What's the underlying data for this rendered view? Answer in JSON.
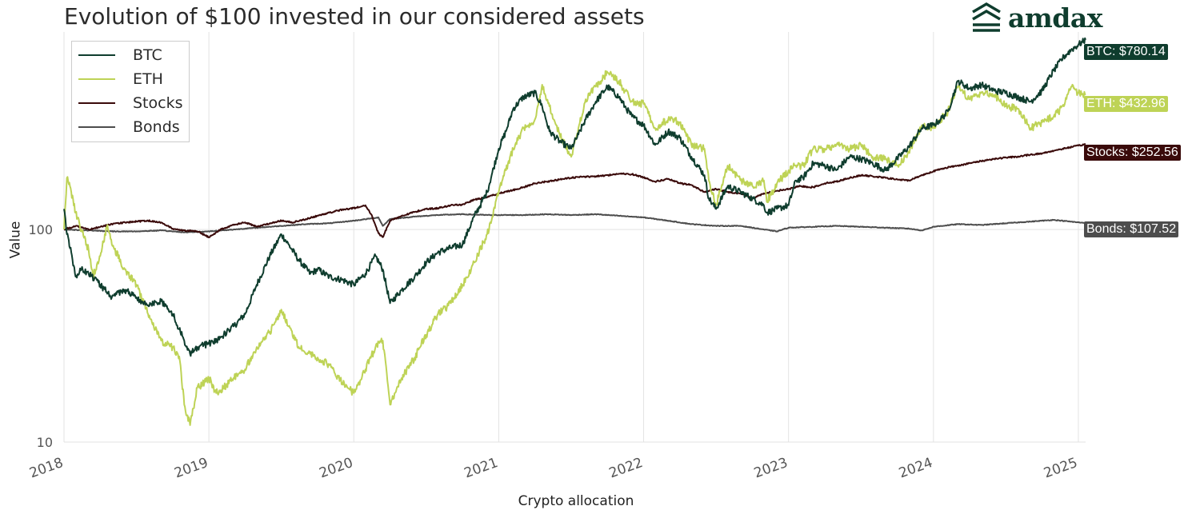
{
  "brand": {
    "name": "amdax",
    "logo_icon": "stacked-chevrons-icon",
    "color": "#0f3d2e"
  },
  "chart_data": {
    "type": "line",
    "title": "Evolution of $100 invested in our considered assets",
    "xlabel": "Crypto allocation",
    "ylabel": "Value",
    "yscale": "log",
    "ylim": [
      10,
      850
    ],
    "xlim": [
      2018.0,
      2025.05
    ],
    "x_ticks": [
      "2018",
      "2019",
      "2020",
      "2021",
      "2022",
      "2023",
      "2024",
      "2025"
    ],
    "y_ticks": [
      "10",
      "100"
    ],
    "grid": true,
    "legend": {
      "position": "top-left",
      "entries": [
        "BTC",
        "ETH",
        "Stocks",
        "Bonds"
      ]
    },
    "series": [
      {
        "name": "BTC",
        "color": "#0f3d2e",
        "end_label": "BTC: $780.14",
        "x": [
          2018.0,
          2018.02,
          2018.05,
          2018.08,
          2018.12,
          2018.17,
          2018.25,
          2018.33,
          2018.42,
          2018.5,
          2018.58,
          2018.67,
          2018.75,
          2018.83,
          2018.87,
          2018.92,
          2019.0,
          2019.08,
          2019.17,
          2019.25,
          2019.33,
          2019.42,
          2019.5,
          2019.55,
          2019.62,
          2019.7,
          2019.75,
          2019.83,
          2019.92,
          2020.0,
          2020.08,
          2020.15,
          2020.2,
          2020.25,
          2020.33,
          2020.42,
          2020.5,
          2020.58,
          2020.67,
          2020.75,
          2020.83,
          2020.92,
          2021.0,
          2021.05,
          2021.1,
          2021.17,
          2021.25,
          2021.3,
          2021.35,
          2021.42,
          2021.5,
          2021.55,
          2021.6,
          2021.67,
          2021.75,
          2021.83,
          2021.87,
          2021.92,
          2022.0,
          2022.08,
          2022.17,
          2022.25,
          2022.33,
          2022.42,
          2022.45,
          2022.5,
          2022.58,
          2022.67,
          2022.75,
          2022.83,
          2022.85,
          2022.92,
          2023.0,
          2023.05,
          2023.1,
          2023.17,
          2023.25,
          2023.33,
          2023.42,
          2023.5,
          2023.58,
          2023.67,
          2023.75,
          2023.83,
          2023.92,
          2024.0,
          2024.05,
          2024.1,
          2024.17,
          2024.25,
          2024.33,
          2024.42,
          2024.5,
          2024.58,
          2024.67,
          2024.75,
          2024.83,
          2024.9,
          2024.95,
          2025.0,
          2025.05
        ],
        "values": [
          125,
          95,
          78,
          60,
          65,
          62,
          55,
          48,
          52,
          48,
          44,
          46,
          40,
          30,
          26,
          28,
          29,
          31,
          35,
          40,
          55,
          75,
          95,
          85,
          72,
          62,
          65,
          60,
          58,
          55,
          62,
          75,
          65,
          45,
          52,
          60,
          70,
          78,
          82,
          85,
          115,
          150,
          240,
          290,
          370,
          420,
          440,
          380,
          290,
          260,
          240,
          280,
          330,
          400,
          470,
          420,
          380,
          340,
          310,
          250,
          290,
          270,
          220,
          180,
          140,
          125,
          160,
          150,
          140,
          130,
          120,
          125,
          130,
          170,
          175,
          205,
          200,
          190,
          220,
          215,
          205,
          190,
          215,
          245,
          300,
          310,
          330,
          360,
          500,
          460,
          480,
          450,
          440,
          420,
          400,
          450,
          560,
          650,
          700,
          740,
          780
        ]
      },
      {
        "name": "ETH",
        "color": "#bed356",
        "end_label": "ETH: $432.96",
        "x": [
          2018.0,
          2018.02,
          2018.05,
          2018.08,
          2018.12,
          2018.17,
          2018.2,
          2018.25,
          2018.3,
          2018.33,
          2018.42,
          2018.5,
          2018.58,
          2018.67,
          2018.75,
          2018.8,
          2018.83,
          2018.87,
          2018.92,
          2019.0,
          2019.05,
          2019.1,
          2019.17,
          2019.25,
          2019.33,
          2019.42,
          2019.5,
          2019.55,
          2019.62,
          2019.7,
          2019.75,
          2019.83,
          2019.92,
          2020.0,
          2020.08,
          2020.15,
          2020.2,
          2020.25,
          2020.33,
          2020.42,
          2020.5,
          2020.58,
          2020.67,
          2020.75,
          2020.83,
          2020.92,
          2021.0,
          2021.05,
          2021.1,
          2021.17,
          2021.25,
          2021.3,
          2021.35,
          2021.42,
          2021.5,
          2021.55,
          2021.6,
          2021.67,
          2021.75,
          2021.83,
          2021.87,
          2021.92,
          2022.0,
          2022.08,
          2022.17,
          2022.25,
          2022.33,
          2022.42,
          2022.45,
          2022.5,
          2022.58,
          2022.67,
          2022.75,
          2022.83,
          2022.85,
          2022.92,
          2023.0,
          2023.05,
          2023.1,
          2023.17,
          2023.25,
          2023.33,
          2023.42,
          2023.5,
          2023.58,
          2023.67,
          2023.75,
          2023.83,
          2023.92,
          2024.0,
          2024.05,
          2024.1,
          2024.17,
          2024.25,
          2024.33,
          2024.42,
          2024.5,
          2024.58,
          2024.67,
          2024.75,
          2024.83,
          2024.9,
          2024.95,
          2025.0,
          2025.05
        ],
        "values": [
          100,
          175,
          150,
          120,
          100,
          80,
          60,
          75,
          105,
          85,
          65,
          55,
          40,
          30,
          28,
          24,
          15,
          12,
          18,
          20,
          17,
          18,
          20,
          22,
          28,
          33,
          42,
          35,
          28,
          26,
          25,
          23,
          19,
          17,
          22,
          28,
          30,
          15,
          20,
          25,
          32,
          40,
          45,
          55,
          70,
          95,
          150,
          190,
          240,
          300,
          330,
          480,
          380,
          280,
          220,
          300,
          410,
          470,
          550,
          500,
          450,
          400,
          390,
          300,
          330,
          320,
          250,
          240,
          170,
          130,
          200,
          170,
          160,
          170,
          135,
          165,
          190,
          200,
          200,
          240,
          240,
          250,
          240,
          250,
          220,
          215,
          200,
          230,
          310,
          300,
          330,
          360,
          470,
          410,
          440,
          430,
          380,
          370,
          300,
          320,
          340,
          380,
          470,
          440,
          430
        ]
      },
      {
        "name": "Stocks",
        "color": "#3a0a0a",
        "end_label": "Stocks: $252.56",
        "x": [
          2018.0,
          2018.08,
          2018.17,
          2018.25,
          2018.33,
          2018.42,
          2018.5,
          2018.58,
          2018.67,
          2018.75,
          2018.83,
          2018.92,
          2019.0,
          2019.08,
          2019.17,
          2019.25,
          2019.33,
          2019.42,
          2019.5,
          2019.58,
          2019.67,
          2019.75,
          2019.83,
          2019.92,
          2020.0,
          2020.08,
          2020.12,
          2020.17,
          2020.2,
          2020.25,
          2020.33,
          2020.42,
          2020.5,
          2020.58,
          2020.67,
          2020.75,
          2020.83,
          2020.92,
          2021.0,
          2021.08,
          2021.17,
          2021.25,
          2021.33,
          2021.42,
          2021.5,
          2021.58,
          2021.67,
          2021.75,
          2021.83,
          2021.92,
          2022.0,
          2022.08,
          2022.17,
          2022.25,
          2022.33,
          2022.42,
          2022.5,
          2022.58,
          2022.67,
          2022.75,
          2022.83,
          2022.92,
          2023.0,
          2023.08,
          2023.17,
          2023.25,
          2023.33,
          2023.42,
          2023.5,
          2023.58,
          2023.67,
          2023.75,
          2023.83,
          2023.92,
          2024.0,
          2024.08,
          2024.17,
          2024.25,
          2024.33,
          2024.42,
          2024.5,
          2024.58,
          2024.67,
          2024.75,
          2024.83,
          2024.92,
          2025.0,
          2025.05
        ],
        "values": [
          100,
          104,
          100,
          103,
          106,
          108,
          109,
          110,
          108,
          101,
          99,
          98,
          92,
          100,
          105,
          108,
          103,
          107,
          110,
          108,
          112,
          116,
          120,
          124,
          126,
          130,
          118,
          96,
          92,
          110,
          116,
          121,
          125,
          126,
          130,
          131,
          138,
          142,
          148,
          152,
          158,
          165,
          168,
          172,
          175,
          177,
          178,
          180,
          183,
          182,
          176,
          168,
          173,
          165,
          162,
          150,
          155,
          150,
          148,
          140,
          148,
          152,
          155,
          160,
          158,
          165,
          168,
          175,
          180,
          178,
          175,
          172,
          170,
          180,
          188,
          195,
          200,
          205,
          210,
          215,
          218,
          220,
          225,
          228,
          235,
          242,
          248,
          252
        ]
      },
      {
        "name": "Bonds",
        "color": "#4d4d4d",
        "end_label": "Bonds: $107.52",
        "x": [
          2018.0,
          2018.17,
          2018.33,
          2018.5,
          2018.67,
          2018.83,
          2019.0,
          2019.17,
          2019.33,
          2019.5,
          2019.67,
          2019.83,
          2020.0,
          2020.17,
          2020.2,
          2020.25,
          2020.42,
          2020.58,
          2020.75,
          2020.92,
          2021.0,
          2021.17,
          2021.33,
          2021.5,
          2021.67,
          2021.83,
          2022.0,
          2022.17,
          2022.33,
          2022.5,
          2022.67,
          2022.83,
          2022.92,
          2023.0,
          2023.17,
          2023.33,
          2023.5,
          2023.67,
          2023.83,
          2023.92,
          2024.0,
          2024.17,
          2024.33,
          2024.5,
          2024.67,
          2024.83,
          2025.0,
          2025.05
        ],
        "values": [
          100,
          99,
          98,
          98,
          99,
          97,
          98,
          100,
          102,
          104,
          106,
          107,
          110,
          114,
          104,
          112,
          115,
          117,
          118,
          117,
          117,
          117,
          118,
          117,
          118,
          116,
          114,
          110,
          106,
          104,
          104,
          100,
          98,
          102,
          103,
          104,
          103,
          102,
          101,
          99,
          103,
          106,
          105,
          107,
          109,
          111,
          108,
          107.5
        ]
      }
    ]
  }
}
